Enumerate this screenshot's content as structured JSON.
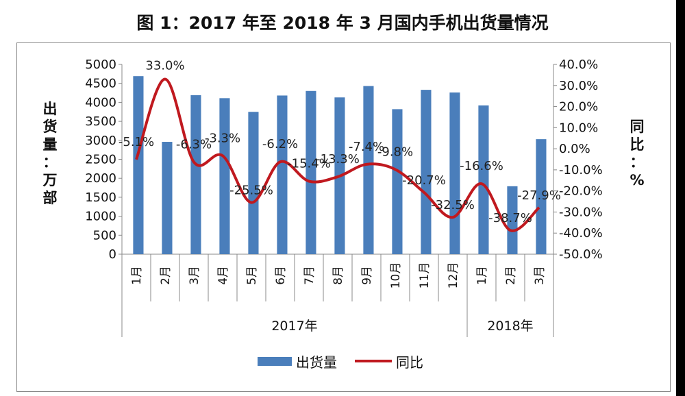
{
  "chart_data": {
    "type": "bar",
    "title": "图 1：2017 年至 2018 年 3 月国内手机出货量情况",
    "categories": [
      "1月",
      "2月",
      "3月",
      "4月",
      "5月",
      "6月",
      "7月",
      "8月",
      "9月",
      "10月",
      "11月",
      "12月",
      "1月",
      "2月",
      "3月"
    ],
    "groups": [
      {
        "label": "2017年",
        "count": 12
      },
      {
        "label": "2018年",
        "count": 3
      }
    ],
    "ylabel_left": "出货量：万部",
    "ylabel_right": "同比：%",
    "ylim_left": [
      0,
      5000
    ],
    "yticks_left": [
      "0",
      "500",
      "1000",
      "1500",
      "2000",
      "2500",
      "3000",
      "3500",
      "4000",
      "4500",
      "5000"
    ],
    "ylim_right": [
      -50,
      40
    ],
    "yticks_right": [
      "-50.0%",
      "-40.0%",
      "-30.0%",
      "-20.0%",
      "-10.0%",
      "0.0%",
      "10.0%",
      "20.0%",
      "30.0%",
      "40.0%"
    ],
    "legend_position": "bottom",
    "series": [
      {
        "name": "出货量",
        "type": "bar",
        "axis": "left",
        "color": "#4a7ebb",
        "values": [
          4690,
          2960,
          4190,
          4110,
          3750,
          4180,
          4300,
          4130,
          4430,
          3820,
          4330,
          4260,
          3920,
          1790,
          3030
        ]
      },
      {
        "name": "同比",
        "type": "line",
        "axis": "right",
        "color": "#c0191f",
        "values": [
          -5.1,
          33.0,
          -6.3,
          -3.3,
          -25.5,
          -6.2,
          -15.4,
          -13.3,
          -7.4,
          -9.8,
          -20.7,
          -32.5,
          -16.6,
          -38.7,
          -27.9
        ],
        "data_labels": [
          "-5.1%",
          "33.0%",
          "-6.3%",
          "-3.3%",
          "-25.5%",
          "-6.2%",
          "-15.4%",
          "-13.3%",
          "-7.4%",
          "-9.8%",
          "-20.7%",
          "-32.5%",
          "-16.6%",
          "-38.7%",
          "-27.9%"
        ]
      }
    ]
  }
}
